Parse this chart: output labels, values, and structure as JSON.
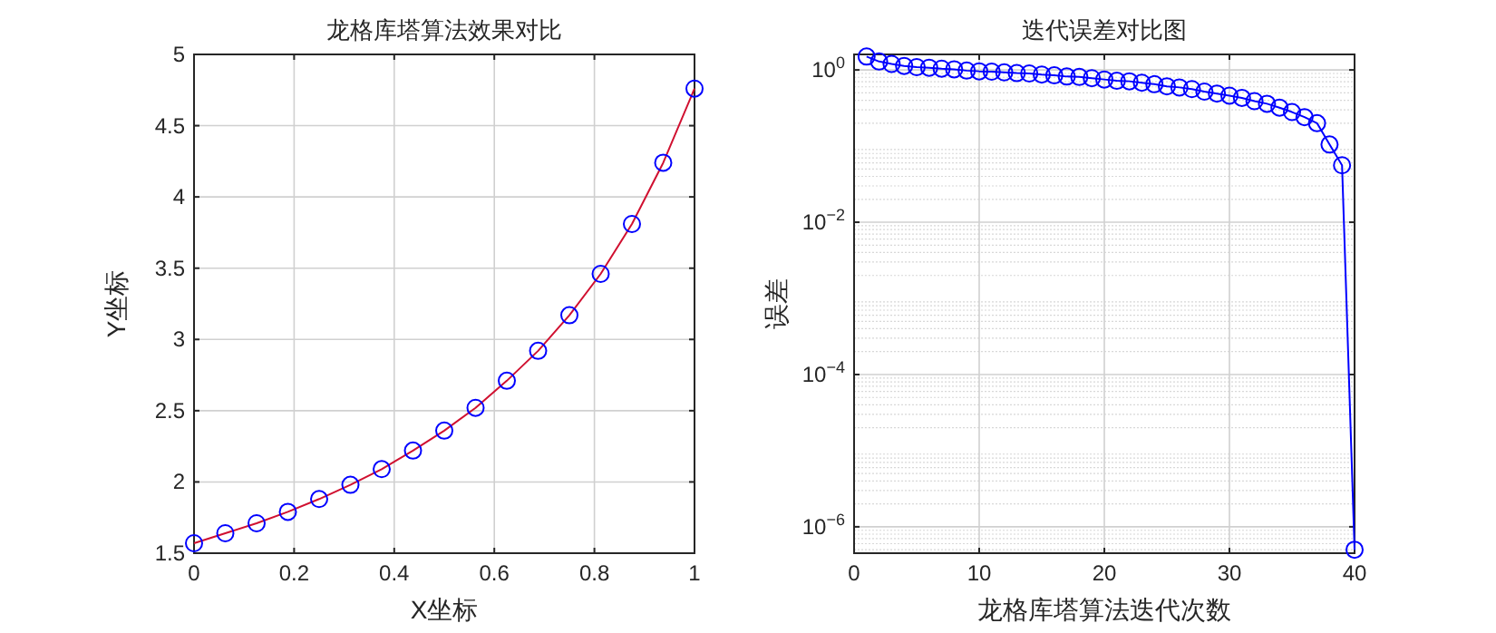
{
  "chart_data": [
    {
      "type": "line",
      "title": "龙格库塔算法效果对比",
      "xlabel": "X坐标",
      "ylabel": "Y坐标",
      "grid": true,
      "xlim": [
        0,
        1
      ],
      "xticks": [
        0,
        0.2,
        0.4,
        0.6,
        0.8,
        1
      ],
      "ylim": [
        1.5,
        5
      ],
      "yticks": [
        1.5,
        2,
        2.5,
        3,
        3.5,
        4,
        4.5,
        5
      ],
      "x": [
        0,
        0.0625,
        0.125,
        0.1875,
        0.25,
        0.3125,
        0.375,
        0.4375,
        0.5,
        0.5625,
        0.625,
        0.6875,
        0.75,
        0.8125,
        0.875,
        0.9375,
        1
      ],
      "series": [
        {
          "type": "line",
          "color": "#d01030",
          "marker": "none",
          "values": [
            1.57,
            1.64,
            1.71,
            1.79,
            1.88,
            1.98,
            2.09,
            2.22,
            2.36,
            2.52,
            2.71,
            2.92,
            3.17,
            3.46,
            3.81,
            4.24,
            4.76
          ]
        },
        {
          "type": "scatter",
          "color": "#0000ff",
          "marker": "circle",
          "values": [
            1.57,
            1.64,
            1.71,
            1.79,
            1.88,
            1.98,
            2.09,
            2.22,
            2.36,
            2.52,
            2.71,
            2.92,
            3.17,
            3.46,
            3.81,
            4.24,
            4.76
          ]
        }
      ]
    },
    {
      "type": "line",
      "title": "迭代误差对比图",
      "xlabel": "龙格库塔算法迭代次数",
      "ylabel": "误差",
      "grid": true,
      "log": "y",
      "marker": "circle",
      "xlim": [
        0,
        40
      ],
      "xticks": [
        0,
        10,
        20,
        30,
        40
      ],
      "ylim": [
        4.5e-07,
        1.6
      ],
      "yticks": [
        {
          "value": 1e-06,
          "label": "10$^{−6}$"
        },
        {
          "value": 0.0001,
          "label": "10$^{−4}$"
        },
        {
          "value": 0.01,
          "label": "10$^{−2}$"
        },
        {
          "value": 1,
          "label": "10$^{0}$"
        }
      ],
      "x": [
        1,
        2,
        3,
        4,
        5,
        6,
        7,
        8,
        9,
        10,
        11,
        12,
        13,
        14,
        15,
        16,
        17,
        18,
        19,
        20,
        21,
        22,
        23,
        24,
        25,
        26,
        27,
        28,
        29,
        30,
        31,
        32,
        33,
        34,
        35,
        36,
        37,
        38,
        39,
        40
      ],
      "series": [
        {
          "color": "#0000ff",
          "values": [
            1.5,
            1.29,
            1.2,
            1.13,
            1.09,
            1.07,
            1.04,
            1.02,
            0.98,
            0.96,
            0.95,
            0.93,
            0.91,
            0.9,
            0.87,
            0.85,
            0.82,
            0.81,
            0.78,
            0.75,
            0.72,
            0.71,
            0.68,
            0.65,
            0.61,
            0.59,
            0.56,
            0.52,
            0.49,
            0.46,
            0.43,
            0.39,
            0.36,
            0.32,
            0.28,
            0.24,
            0.2,
            0.105,
            0.056,
            5e-07
          ]
        }
      ]
    }
  ]
}
